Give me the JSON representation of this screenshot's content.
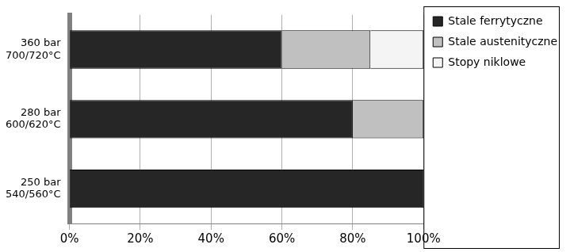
{
  "chart_data": {
    "type": "bar",
    "orientation": "horizontal",
    "stacked": true,
    "grid": true,
    "legend": "right",
    "categories": [
      "360 bar\n700/720°C",
      "280 bar\n600/620°C",
      "250 bar\n540/560°C"
    ],
    "series": [
      {
        "name": "Stale ferrytyczne",
        "color": "#262626",
        "values": [
          60,
          80,
          100
        ]
      },
      {
        "name": "Stale austenityczne",
        "color": "#c0c0c0",
        "values": [
          25,
          20,
          0
        ]
      },
      {
        "name": "Stopy niklowe",
        "color": "#f4f4f4",
        "values": [
          15,
          0,
          0
        ]
      }
    ],
    "xlim": [
      0,
      100
    ],
    "xticks": [
      {
        "value": 0,
        "label": "0%"
      },
      {
        "value": 20,
        "label": "20%"
      },
      {
        "value": 40,
        "label": "40%"
      },
      {
        "value": 60,
        "label": "60%"
      },
      {
        "value": 80,
        "label": "80%"
      },
      {
        "value": 100,
        "label": "100%"
      }
    ]
  }
}
